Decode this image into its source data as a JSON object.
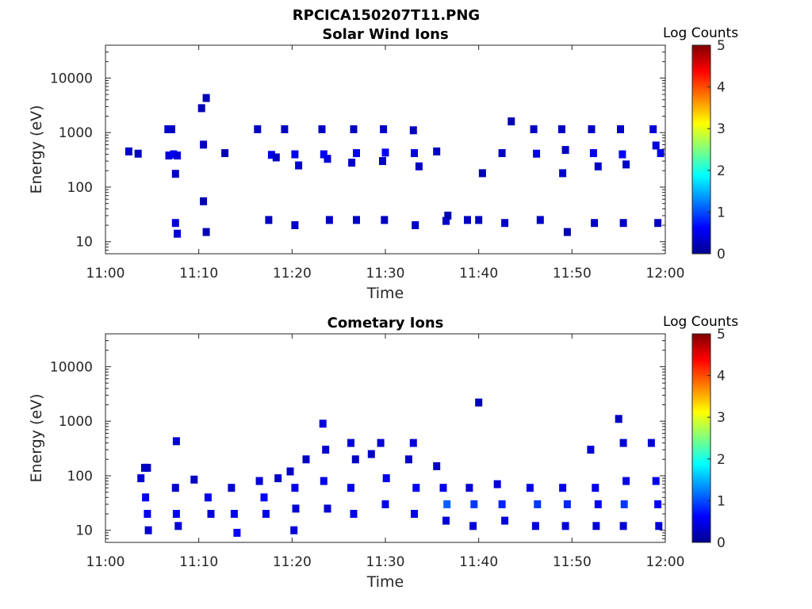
{
  "figure_title": "RPCICA150207T11.PNG",
  "colors": {
    "scale": [
      "#00008f",
      "#0000ff",
      "#00ffff",
      "#ffff00",
      "#ff0000",
      "#800000"
    ],
    "axis": "#262626"
  },
  "chart_data": [
    {
      "type": "heatmap",
      "title": "Solar Wind Ions",
      "xlabel": "Time",
      "ylabel": "Energy (eV)",
      "x_ticks": [
        "11:00",
        "11:10",
        "11:20",
        "11:30",
        "11:40",
        "11:50",
        "12:00"
      ],
      "y_ticks": [
        "10",
        "100",
        "1000",
        "10000"
      ],
      "y_scale": "log",
      "xlim_minutes": [
        0,
        60
      ],
      "ylim_eV": [
        6,
        40000
      ],
      "colorbar": {
        "label": "Log Counts",
        "ticks": [
          "0",
          "1",
          "2",
          "3",
          "4",
          "5"
        ],
        "range": [
          0,
          5
        ]
      },
      "cells": [
        [
          2.5,
          450,
          0.3
        ],
        [
          3.5,
          410,
          0.3
        ],
        [
          6.7,
          1150,
          0.4
        ],
        [
          7.1,
          1150,
          0.3
        ],
        [
          6.8,
          380,
          0.4
        ],
        [
          7.3,
          400,
          0.6
        ],
        [
          7.7,
          380,
          0.4
        ],
        [
          7.5,
          175,
          0.3
        ],
        [
          7.5,
          22,
          0.4
        ],
        [
          7.7,
          14,
          0.4
        ],
        [
          10.5,
          600,
          0.3
        ],
        [
          10.8,
          4300,
          0.2
        ],
        [
          10.3,
          2800,
          0.2
        ],
        [
          10.5,
          55,
          0.2
        ],
        [
          10.8,
          15,
          0.2
        ],
        [
          12.8,
          420,
          0.2
        ],
        [
          16.3,
          1150,
          0.3
        ],
        [
          17.5,
          25,
          0.3
        ],
        [
          17.8,
          390,
          0.5
        ],
        [
          18.3,
          350,
          0.3
        ],
        [
          19.2,
          1150,
          0.3
        ],
        [
          20.3,
          400,
          0.5
        ],
        [
          20.7,
          250,
          0.3
        ],
        [
          20.3,
          20,
          0.3
        ],
        [
          23.2,
          1150,
          0.3
        ],
        [
          23.4,
          400,
          0.6
        ],
        [
          23.8,
          330,
          0.4
        ],
        [
          24.0,
          25,
          0.3
        ],
        [
          26.6,
          1150,
          0.3
        ],
        [
          26.9,
          420,
          0.5
        ],
        [
          26.4,
          280,
          0.3
        ],
        [
          26.9,
          25,
          0.3
        ],
        [
          29.8,
          1150,
          0.3
        ],
        [
          30.0,
          430,
          0.6
        ],
        [
          29.7,
          300,
          0.3
        ],
        [
          29.9,
          25,
          0.3
        ],
        [
          33.0,
          1100,
          0.3
        ],
        [
          33.1,
          420,
          0.5
        ],
        [
          33.6,
          240,
          0.3
        ],
        [
          33.2,
          20,
          0.3
        ],
        [
          35.5,
          450,
          0.3
        ],
        [
          36.5,
          24,
          0.3
        ],
        [
          36.7,
          30,
          0.2
        ],
        [
          38.8,
          25,
          0.3
        ],
        [
          40.0,
          25,
          0.3
        ],
        [
          40.4,
          180,
          0.2
        ],
        [
          42.5,
          420,
          0.3
        ],
        [
          42.8,
          22,
          0.3
        ],
        [
          43.5,
          1600,
          0.2
        ],
        [
          45.9,
          1150,
          0.3
        ],
        [
          46.2,
          410,
          0.5
        ],
        [
          46.6,
          25,
          0.3
        ],
        [
          48.9,
          1150,
          0.3
        ],
        [
          49.3,
          480,
          0.3
        ],
        [
          49.0,
          180,
          0.3
        ],
        [
          49.5,
          15,
          0.2
        ],
        [
          52.1,
          1150,
          0.3
        ],
        [
          52.3,
          420,
          0.5
        ],
        [
          52.8,
          240,
          0.3
        ],
        [
          52.4,
          22,
          0.3
        ],
        [
          55.2,
          1150,
          0.3
        ],
        [
          55.4,
          400,
          0.6
        ],
        [
          55.8,
          260,
          0.3
        ],
        [
          55.5,
          22,
          0.3
        ],
        [
          58.7,
          1150,
          0.4
        ],
        [
          59.0,
          580,
          0.4
        ],
        [
          59.5,
          420,
          0.6
        ],
        [
          59.2,
          22,
          0.3
        ]
      ]
    },
    {
      "type": "heatmap",
      "title": "Cometary Ions",
      "xlabel": "Time",
      "ylabel": "Energy (eV)",
      "x_ticks": [
        "11:00",
        "11:10",
        "11:20",
        "11:30",
        "11:40",
        "11:50",
        "12:00"
      ],
      "y_ticks": [
        "10",
        "100",
        "1000",
        "10000"
      ],
      "y_scale": "log",
      "xlim_minutes": [
        0,
        60
      ],
      "ylim_eV": [
        6,
        40000
      ],
      "colorbar": {
        "label": "Log Counts",
        "ticks": [
          "0",
          "1",
          "2",
          "3",
          "4",
          "5"
        ],
        "range": [
          0,
          5
        ]
      },
      "cells": [
        [
          4.2,
          140,
          0.3
        ],
        [
          4.5,
          140,
          0.3
        ],
        [
          3.8,
          90,
          0.4
        ],
        [
          4.3,
          40,
          0.5
        ],
        [
          4.5,
          20,
          0.5
        ],
        [
          4.6,
          10,
          0.4
        ],
        [
          7.6,
          430,
          0.4
        ],
        [
          7.5,
          60,
          0.4
        ],
        [
          7.6,
          20,
          0.6
        ],
        [
          7.8,
          12,
          0.4
        ],
        [
          9.5,
          85,
          0.3
        ],
        [
          11.0,
          40,
          0.5
        ],
        [
          11.3,
          20,
          0.4
        ],
        [
          13.5,
          60,
          0.4
        ],
        [
          13.8,
          20,
          0.5
        ],
        [
          14.1,
          9,
          0.6
        ],
        [
          16.5,
          80,
          0.4
        ],
        [
          17.0,
          40,
          0.6
        ],
        [
          17.2,
          20,
          0.5
        ],
        [
          18.5,
          90,
          0.3
        ],
        [
          19.8,
          120,
          0.3
        ],
        [
          20.3,
          60,
          0.5
        ],
        [
          20.4,
          25,
          0.4
        ],
        [
          20.2,
          10,
          0.4
        ],
        [
          21.5,
          200,
          0.3
        ],
        [
          23.3,
          900,
          0.4
        ],
        [
          23.6,
          300,
          0.4
        ],
        [
          23.4,
          80,
          0.5
        ],
        [
          23.8,
          25,
          0.4
        ],
        [
          26.3,
          400,
          0.4
        ],
        [
          26.8,
          200,
          0.3
        ],
        [
          26.3,
          60,
          0.5
        ],
        [
          26.6,
          20,
          0.5
        ],
        [
          28.5,
          250,
          0.3
        ],
        [
          29.5,
          400,
          0.4
        ],
        [
          30.1,
          90,
          0.5
        ],
        [
          30.0,
          30,
          0.5
        ],
        [
          32.5,
          200,
          0.3
        ],
        [
          33.0,
          400,
          0.4
        ],
        [
          33.3,
          60,
          0.6
        ],
        [
          33.1,
          20,
          0.5
        ],
        [
          35.5,
          150,
          0.3
        ],
        [
          36.2,
          60,
          0.5
        ],
        [
          36.6,
          30,
          1.1
        ],
        [
          36.5,
          15,
          0.4
        ],
        [
          39.0,
          60,
          0.4
        ],
        [
          39.5,
          30,
          0.9
        ],
        [
          39.4,
          12,
          0.4
        ],
        [
          40.0,
          2200,
          0.2
        ],
        [
          42.0,
          70,
          0.4
        ],
        [
          42.5,
          30,
          0.8
        ],
        [
          42.8,
          15,
          0.4
        ],
        [
          45.5,
          60,
          0.5
        ],
        [
          46.3,
          30,
          0.9
        ],
        [
          46.1,
          12,
          0.4
        ],
        [
          49.0,
          60,
          0.5
        ],
        [
          49.5,
          30,
          0.8
        ],
        [
          49.3,
          12,
          0.4
        ],
        [
          52.0,
          300,
          0.4
        ],
        [
          52.5,
          60,
          0.5
        ],
        [
          52.8,
          30,
          0.6
        ],
        [
          52.6,
          12,
          0.4
        ],
        [
          55.0,
          1100,
          0.3
        ],
        [
          55.5,
          400,
          0.4
        ],
        [
          55.8,
          80,
          0.5
        ],
        [
          55.6,
          30,
          0.9
        ],
        [
          55.5,
          12,
          0.4
        ],
        [
          58.5,
          400,
          0.4
        ],
        [
          59.0,
          80,
          0.5
        ],
        [
          59.2,
          30,
          0.6
        ],
        [
          59.3,
          12,
          0.4
        ]
      ]
    }
  ]
}
